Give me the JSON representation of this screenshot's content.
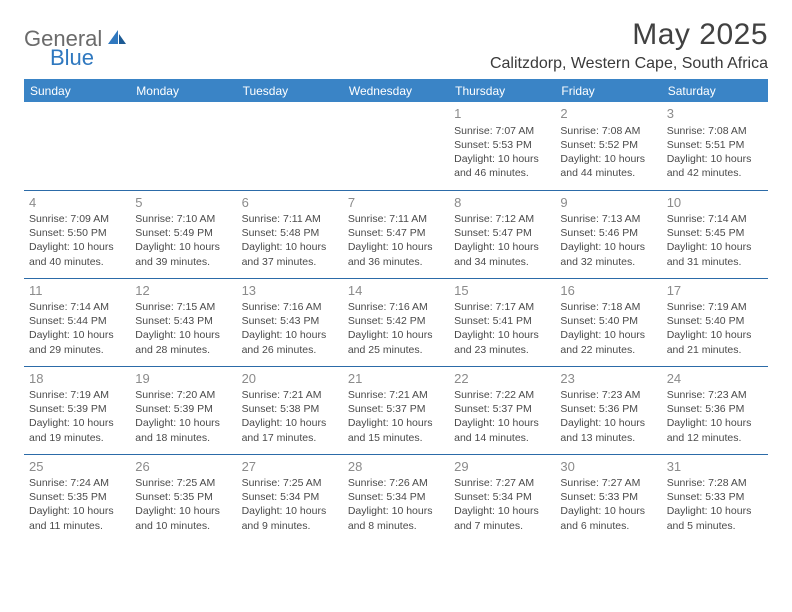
{
  "branding": {
    "text_general": "General",
    "text_blue": "Blue",
    "icon_color": "#2f78bf"
  },
  "header": {
    "month_title": "May 2025",
    "location": "Calitzdorp, Western Cape, South Africa"
  },
  "colors": {
    "header_bg": "#3a84c6",
    "header_text": "#ffffff",
    "cell_border": "#2c6ba8",
    "daynum": "#8b8b8b",
    "body_text": "#4a4a4a"
  },
  "day_headers": [
    "Sunday",
    "Monday",
    "Tuesday",
    "Wednesday",
    "Thursday",
    "Friday",
    "Saturday"
  ],
  "weeks": [
    [
      null,
      null,
      null,
      null,
      {
        "n": "1",
        "sr": "Sunrise: 7:07 AM",
        "ss": "Sunset: 5:53 PM",
        "d1": "Daylight: 10 hours",
        "d2": "and 46 minutes."
      },
      {
        "n": "2",
        "sr": "Sunrise: 7:08 AM",
        "ss": "Sunset: 5:52 PM",
        "d1": "Daylight: 10 hours",
        "d2": "and 44 minutes."
      },
      {
        "n": "3",
        "sr": "Sunrise: 7:08 AM",
        "ss": "Sunset: 5:51 PM",
        "d1": "Daylight: 10 hours",
        "d2": "and 42 minutes."
      }
    ],
    [
      {
        "n": "4",
        "sr": "Sunrise: 7:09 AM",
        "ss": "Sunset: 5:50 PM",
        "d1": "Daylight: 10 hours",
        "d2": "and 40 minutes."
      },
      {
        "n": "5",
        "sr": "Sunrise: 7:10 AM",
        "ss": "Sunset: 5:49 PM",
        "d1": "Daylight: 10 hours",
        "d2": "and 39 minutes."
      },
      {
        "n": "6",
        "sr": "Sunrise: 7:11 AM",
        "ss": "Sunset: 5:48 PM",
        "d1": "Daylight: 10 hours",
        "d2": "and 37 minutes."
      },
      {
        "n": "7",
        "sr": "Sunrise: 7:11 AM",
        "ss": "Sunset: 5:47 PM",
        "d1": "Daylight: 10 hours",
        "d2": "and 36 minutes."
      },
      {
        "n": "8",
        "sr": "Sunrise: 7:12 AM",
        "ss": "Sunset: 5:47 PM",
        "d1": "Daylight: 10 hours",
        "d2": "and 34 minutes."
      },
      {
        "n": "9",
        "sr": "Sunrise: 7:13 AM",
        "ss": "Sunset: 5:46 PM",
        "d1": "Daylight: 10 hours",
        "d2": "and 32 minutes."
      },
      {
        "n": "10",
        "sr": "Sunrise: 7:14 AM",
        "ss": "Sunset: 5:45 PM",
        "d1": "Daylight: 10 hours",
        "d2": "and 31 minutes."
      }
    ],
    [
      {
        "n": "11",
        "sr": "Sunrise: 7:14 AM",
        "ss": "Sunset: 5:44 PM",
        "d1": "Daylight: 10 hours",
        "d2": "and 29 minutes."
      },
      {
        "n": "12",
        "sr": "Sunrise: 7:15 AM",
        "ss": "Sunset: 5:43 PM",
        "d1": "Daylight: 10 hours",
        "d2": "and 28 minutes."
      },
      {
        "n": "13",
        "sr": "Sunrise: 7:16 AM",
        "ss": "Sunset: 5:43 PM",
        "d1": "Daylight: 10 hours",
        "d2": "and 26 minutes."
      },
      {
        "n": "14",
        "sr": "Sunrise: 7:16 AM",
        "ss": "Sunset: 5:42 PM",
        "d1": "Daylight: 10 hours",
        "d2": "and 25 minutes."
      },
      {
        "n": "15",
        "sr": "Sunrise: 7:17 AM",
        "ss": "Sunset: 5:41 PM",
        "d1": "Daylight: 10 hours",
        "d2": "and 23 minutes."
      },
      {
        "n": "16",
        "sr": "Sunrise: 7:18 AM",
        "ss": "Sunset: 5:40 PM",
        "d1": "Daylight: 10 hours",
        "d2": "and 22 minutes."
      },
      {
        "n": "17",
        "sr": "Sunrise: 7:19 AM",
        "ss": "Sunset: 5:40 PM",
        "d1": "Daylight: 10 hours",
        "d2": "and 21 minutes."
      }
    ],
    [
      {
        "n": "18",
        "sr": "Sunrise: 7:19 AM",
        "ss": "Sunset: 5:39 PM",
        "d1": "Daylight: 10 hours",
        "d2": "and 19 minutes."
      },
      {
        "n": "19",
        "sr": "Sunrise: 7:20 AM",
        "ss": "Sunset: 5:39 PM",
        "d1": "Daylight: 10 hours",
        "d2": "and 18 minutes."
      },
      {
        "n": "20",
        "sr": "Sunrise: 7:21 AM",
        "ss": "Sunset: 5:38 PM",
        "d1": "Daylight: 10 hours",
        "d2": "and 17 minutes."
      },
      {
        "n": "21",
        "sr": "Sunrise: 7:21 AM",
        "ss": "Sunset: 5:37 PM",
        "d1": "Daylight: 10 hours",
        "d2": "and 15 minutes."
      },
      {
        "n": "22",
        "sr": "Sunrise: 7:22 AM",
        "ss": "Sunset: 5:37 PM",
        "d1": "Daylight: 10 hours",
        "d2": "and 14 minutes."
      },
      {
        "n": "23",
        "sr": "Sunrise: 7:23 AM",
        "ss": "Sunset: 5:36 PM",
        "d1": "Daylight: 10 hours",
        "d2": "and 13 minutes."
      },
      {
        "n": "24",
        "sr": "Sunrise: 7:23 AM",
        "ss": "Sunset: 5:36 PM",
        "d1": "Daylight: 10 hours",
        "d2": "and 12 minutes."
      }
    ],
    [
      {
        "n": "25",
        "sr": "Sunrise: 7:24 AM",
        "ss": "Sunset: 5:35 PM",
        "d1": "Daylight: 10 hours",
        "d2": "and 11 minutes."
      },
      {
        "n": "26",
        "sr": "Sunrise: 7:25 AM",
        "ss": "Sunset: 5:35 PM",
        "d1": "Daylight: 10 hours",
        "d2": "and 10 minutes."
      },
      {
        "n": "27",
        "sr": "Sunrise: 7:25 AM",
        "ss": "Sunset: 5:34 PM",
        "d1": "Daylight: 10 hours",
        "d2": "and 9 minutes."
      },
      {
        "n": "28",
        "sr": "Sunrise: 7:26 AM",
        "ss": "Sunset: 5:34 PM",
        "d1": "Daylight: 10 hours",
        "d2": "and 8 minutes."
      },
      {
        "n": "29",
        "sr": "Sunrise: 7:27 AM",
        "ss": "Sunset: 5:34 PM",
        "d1": "Daylight: 10 hours",
        "d2": "and 7 minutes."
      },
      {
        "n": "30",
        "sr": "Sunrise: 7:27 AM",
        "ss": "Sunset: 5:33 PM",
        "d1": "Daylight: 10 hours",
        "d2": "and 6 minutes."
      },
      {
        "n": "31",
        "sr": "Sunrise: 7:28 AM",
        "ss": "Sunset: 5:33 PM",
        "d1": "Daylight: 10 hours",
        "d2": "and 5 minutes."
      }
    ]
  ]
}
